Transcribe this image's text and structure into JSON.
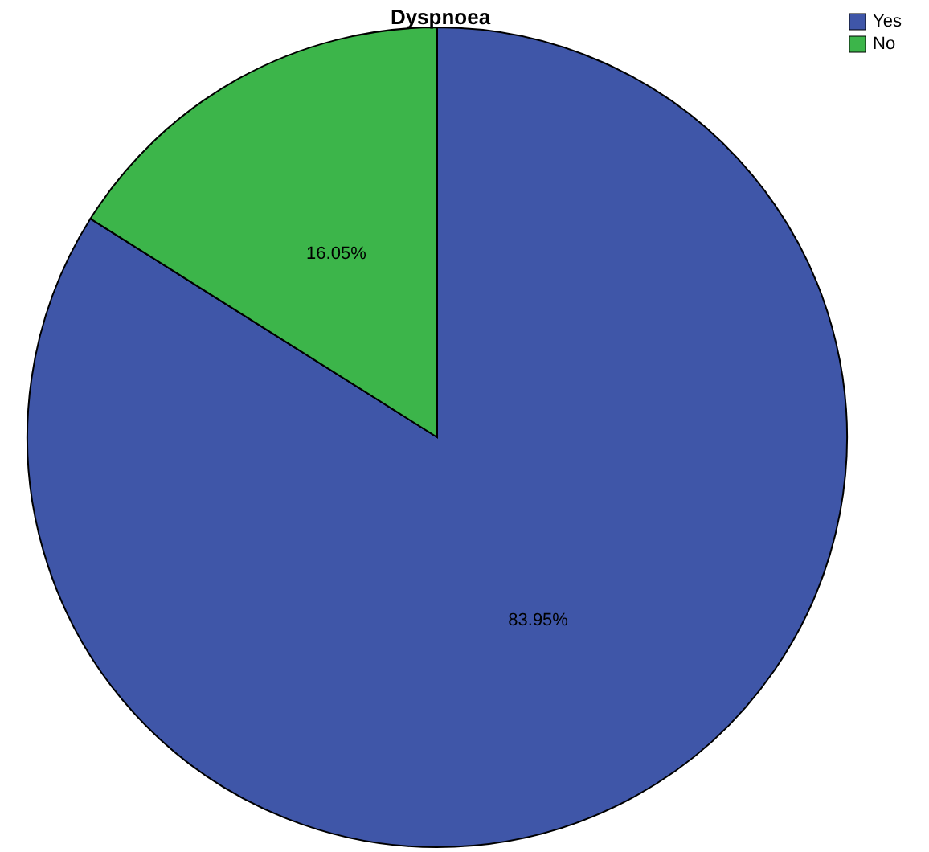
{
  "chart_data": {
    "type": "pie",
    "title": "Dyspnoea",
    "categories": [
      "Yes",
      "No"
    ],
    "values": [
      83.95,
      16.05
    ],
    "colors": [
      "#3f56a8",
      "#3cb54a"
    ],
    "value_labels": [
      "83.95%",
      "16.05%"
    ],
    "legend": "top right"
  }
}
